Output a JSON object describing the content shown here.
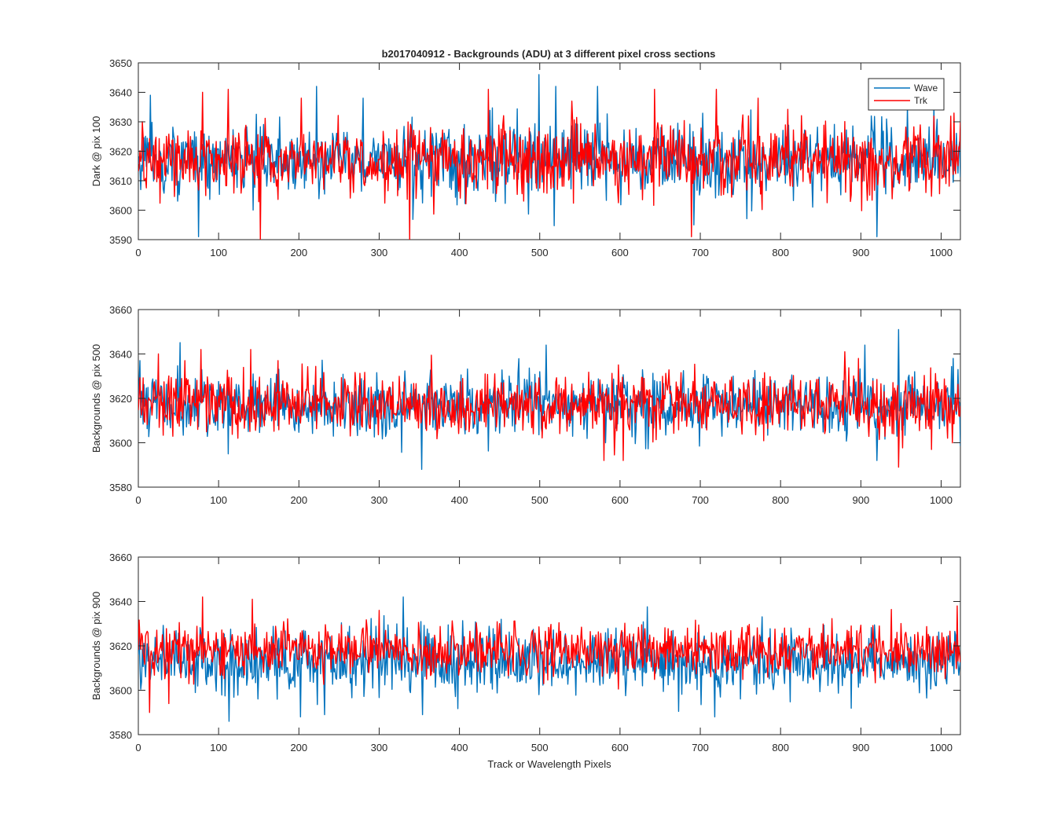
{
  "figure": {
    "title": "b2017040912 - Backgrounds (ADU) at 3 different pixel cross sections",
    "xlabel": "Track or Wavelength Pixels"
  },
  "legend": {
    "position": "top-right of first panel",
    "entries": [
      "Wave",
      "Trk"
    ]
  },
  "colors": {
    "Wave": "#0072BD",
    "Trk": "#FF0000",
    "axes": "#262626"
  },
  "chart_data": [
    {
      "type": "line",
      "ylabel": "Dark @ pix 100",
      "xlim": [
        0,
        1024
      ],
      "ylim": [
        3590,
        3650
      ],
      "xticks": [
        0,
        100,
        200,
        300,
        400,
        500,
        600,
        700,
        800,
        900,
        1000
      ],
      "yticks": [
        3590,
        3600,
        3610,
        3620,
        3630,
        3640,
        3650
      ],
      "grid": false,
      "series": [
        {
          "name": "Wave",
          "mean": 3617,
          "spread": 6,
          "peaks": [
            [
              15,
              3639
            ],
            [
              75,
              3591
            ],
            [
              222,
              3642
            ],
            [
              280,
              3638
            ],
            [
              499,
              3646
            ],
            [
              520,
              3642
            ],
            [
              572,
              3642
            ],
            [
              692,
              3595
            ],
            [
              763,
              3634
            ],
            [
              920,
              3591
            ],
            [
              958,
              3635
            ]
          ]
        },
        {
          "name": "Trk",
          "mean": 3617,
          "spread": 6,
          "peaks": [
            [
              5,
              3630
            ],
            [
              80,
              3640
            ],
            [
              112,
              3641
            ],
            [
              152,
              3590
            ],
            [
              203,
              3638
            ],
            [
              338,
              3590
            ],
            [
              436,
              3641
            ],
            [
              540,
              3637
            ],
            [
              643,
              3641
            ],
            [
              689,
              3591
            ],
            [
              720,
              3641
            ],
            [
              772,
              3638
            ],
            [
              1024,
              3630
            ]
          ]
        }
      ]
    },
    {
      "type": "line",
      "ylabel": "Backgrounds @ pix 500",
      "xlim": [
        0,
        1024
      ],
      "ylim": [
        3580,
        3660
      ],
      "xticks": [
        0,
        100,
        200,
        300,
        400,
        500,
        600,
        700,
        800,
        900,
        1000
      ],
      "yticks": [
        3580,
        3600,
        3620,
        3640,
        3660
      ],
      "grid": false,
      "series": [
        {
          "name": "Wave",
          "mean": 3617,
          "spread": 7,
          "peaks": [
            [
              2,
              3637
            ],
            [
              112,
              3595
            ],
            [
              353,
              3588
            ],
            [
              508,
              3644
            ],
            [
              582,
              3600
            ],
            [
              905,
              3644
            ],
            [
              920,
              3592
            ],
            [
              947,
              3651
            ],
            [
              1015,
              3638
            ]
          ]
        },
        {
          "name": "Trk",
          "mean": 3617,
          "spread": 7,
          "peaks": [
            [
              25,
              3640
            ],
            [
              58,
              3637
            ],
            [
              78,
              3642
            ],
            [
              140,
              3642
            ],
            [
              580,
              3592
            ],
            [
              604,
              3592
            ],
            [
              880,
              3641
            ],
            [
              947,
              3589
            ]
          ]
        }
      ]
    },
    {
      "type": "line",
      "ylabel": "Backgrounds @ pix 900",
      "xlim": [
        0,
        1024
      ],
      "ylim": [
        3580,
        3660
      ],
      "xticks": [
        0,
        100,
        200,
        300,
        400,
        500,
        600,
        700,
        800,
        900,
        1000
      ],
      "yticks": [
        3580,
        3600,
        3620,
        3640,
        3660
      ],
      "grid": false,
      "series": [
        {
          "name": "Wave",
          "mean": 3613,
          "spread": 7,
          "peaks": [
            [
              113,
              3586
            ],
            [
              202,
              3588
            ],
            [
              232,
              3589
            ],
            [
              330,
              3642
            ],
            [
              354,
              3589
            ],
            [
              718,
              3588
            ],
            [
              1020,
              3630
            ]
          ]
        },
        {
          "name": "Trk",
          "mean": 3618,
          "spread": 6,
          "peaks": [
            [
              14,
              3590
            ],
            [
              38,
              3594
            ],
            [
              80,
              3642
            ],
            [
              142,
              3641
            ],
            [
              300,
              3636
            ],
            [
              1020,
              3638
            ]
          ]
        }
      ]
    }
  ]
}
